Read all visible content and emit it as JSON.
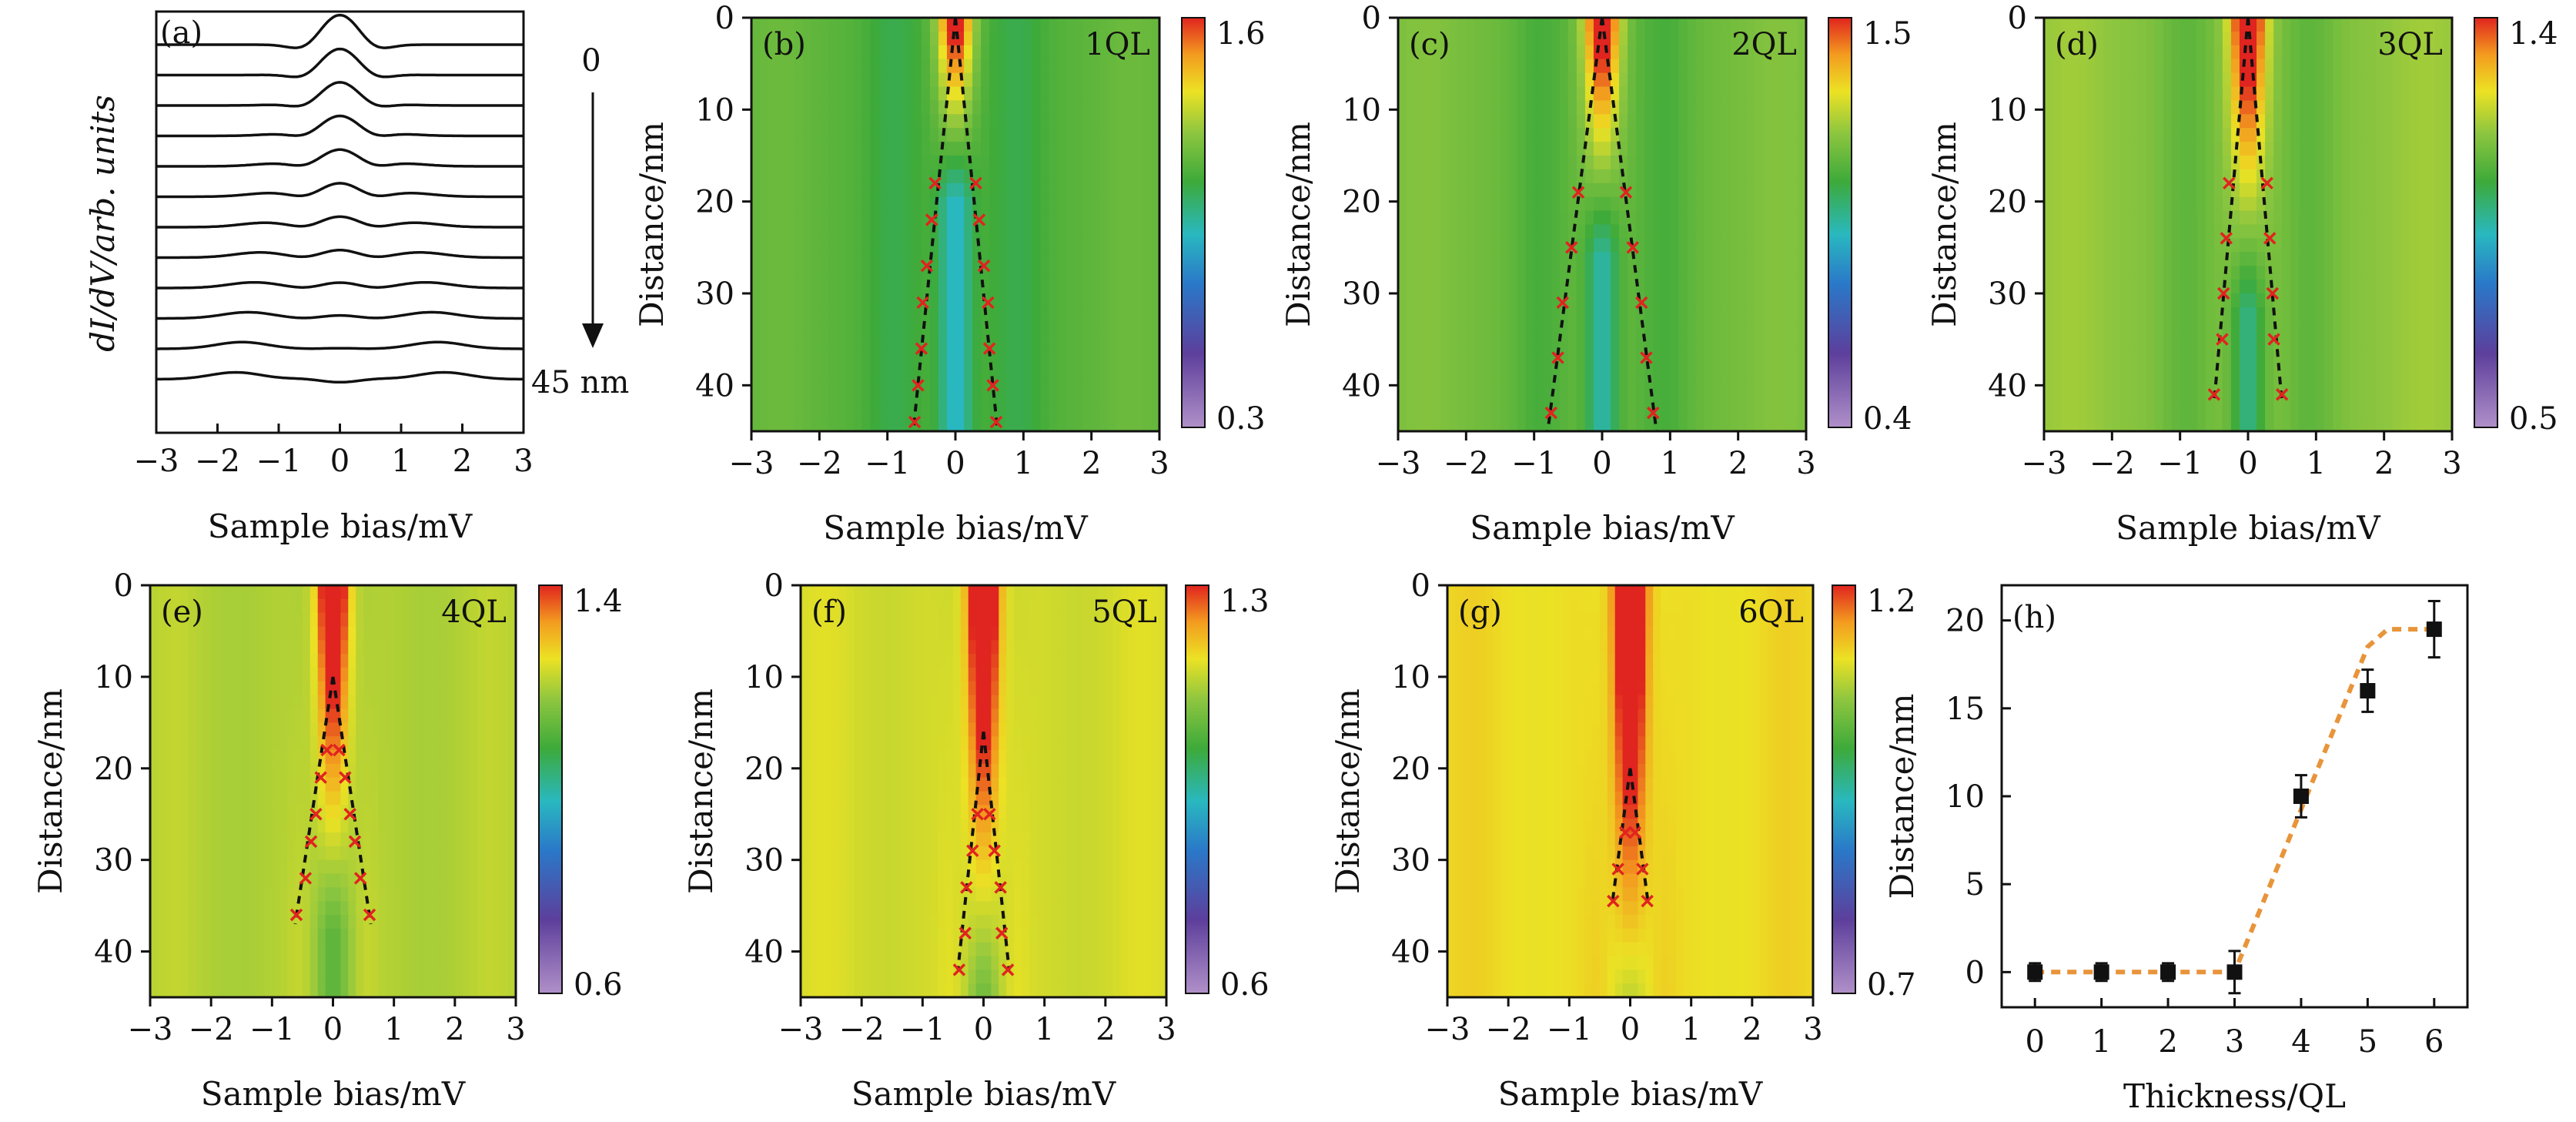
{
  "figure": {
    "panel_a": {
      "label": "(a)",
      "ylabel": "dI/dV/arb. units",
      "xlabel": "Sample bias/mV",
      "arrow_start_label": "0",
      "arrow_end_label": "45 nm"
    }
  },
  "chart_data": [
    {
      "id": "a",
      "type": "line",
      "title": "(a)",
      "xlabel": "Sample bias/mV",
      "ylabel": "dI/dV/arb. units",
      "xlim": [
        -3,
        3
      ],
      "xticks": [
        "−3",
        "−2",
        "−1",
        "0",
        "1",
        "2",
        "3"
      ],
      "series_count": 12,
      "annotations": [
        "0",
        "45 nm"
      ],
      "profile": {
        "peak_amplitude": [
          1.0,
          0.85,
          0.75,
          0.65,
          0.55,
          0.45,
          0.35,
          0.25,
          0.18,
          0.1,
          0.02,
          -0.1
        ],
        "coherence_peak_position_mV": [
          0.1,
          0.3,
          0.45,
          0.6,
          0.75,
          0.9,
          1.0,
          1.1,
          1.2,
          1.3,
          1.4,
          1.5
        ]
      }
    },
    {
      "id": "b",
      "type": "heatmap",
      "title": "(b)",
      "thickness_label": "1QL",
      "xlabel": "Sample bias/mV",
      "ylabel": "Distance/nm",
      "xlim": [
        -3,
        3
      ],
      "ylim": [
        0,
        45
      ],
      "xticks": [
        "−3",
        "−2",
        "−1",
        "0",
        "1",
        "2",
        "3"
      ],
      "yticks": [
        "0",
        "10",
        "20",
        "30",
        "40"
      ],
      "colorbar": {
        "max": 1.6,
        "min": 0.3,
        "max_label": "1.6",
        "min_label": "0.3"
      },
      "peak_positions": [
        {
          "y": 18,
          "x": 0.3
        },
        {
          "y": 22,
          "x": 0.35
        },
        {
          "y": 27,
          "x": 0.42
        },
        {
          "y": 31,
          "x": 0.48
        },
        {
          "y": 36,
          "x": 0.5
        },
        {
          "y": 40,
          "x": 0.55
        },
        {
          "y": 44,
          "x": 0.6
        }
      ],
      "dashed_line": [
        {
          "x": 0,
          "y": 0
        },
        {
          "x": 0.62,
          "y": 45
        }
      ]
    },
    {
      "id": "c",
      "type": "heatmap",
      "title": "(c)",
      "thickness_label": "2QL",
      "xlabel": "Sample bias/mV",
      "ylabel": "Distance/nm",
      "xlim": [
        -3,
        3
      ],
      "ylim": [
        0,
        45
      ],
      "xticks": [
        "−3",
        "−2",
        "−1",
        "0",
        "1",
        "2",
        "3"
      ],
      "yticks": [
        "0",
        "10",
        "20",
        "30",
        "40"
      ],
      "colorbar": {
        "max": 1.5,
        "min": 0.4,
        "max_label": "1.5",
        "min_label": "0.4"
      },
      "peak_positions": [
        {
          "y": 19,
          "x": 0.35
        },
        {
          "y": 25,
          "x": 0.45
        },
        {
          "y": 31,
          "x": 0.58
        },
        {
          "y": 37,
          "x": 0.65
        },
        {
          "y": 43,
          "x": 0.75
        }
      ],
      "dashed_line": [
        {
          "x": 0,
          "y": 0
        },
        {
          "x": 0.8,
          "y": 45
        }
      ]
    },
    {
      "id": "d",
      "type": "heatmap",
      "title": "(d)",
      "thickness_label": "3QL",
      "xlabel": "Sample bias/mV",
      "ylabel": "Distance/nm",
      "xlim": [
        -3,
        3
      ],
      "ylim": [
        0,
        45
      ],
      "xticks": [
        "−3",
        "−2",
        "−1",
        "0",
        "1",
        "2",
        "3"
      ],
      "yticks": [
        "0",
        "10",
        "20",
        "30",
        "40"
      ],
      "colorbar": {
        "max": 1.4,
        "min": 0.5,
        "max_label": "1.4",
        "min_label": "0.5"
      },
      "peak_positions": [
        {
          "y": 18,
          "x": 0.28
        },
        {
          "y": 24,
          "x": 0.32
        },
        {
          "y": 30,
          "x": 0.36
        },
        {
          "y": 35,
          "x": 0.38
        },
        {
          "y": 41,
          "x": 0.5
        }
      ],
      "dashed_line": [
        {
          "x": 0,
          "y": 0
        },
        {
          "x": 0.5,
          "y": 42
        }
      ]
    },
    {
      "id": "e",
      "type": "heatmap",
      "title": "(e)",
      "thickness_label": "4QL",
      "xlabel": "Sample bias/mV",
      "ylabel": "Distance/nm",
      "xlim": [
        -3,
        3
      ],
      "ylim": [
        0,
        45
      ],
      "xticks": [
        "−3",
        "−2",
        "−1",
        "0",
        "1",
        "2",
        "3"
      ],
      "yticks": [
        "0",
        "10",
        "20",
        "30",
        "40"
      ],
      "colorbar": {
        "max": 1.4,
        "min": 0.6,
        "max_label": "1.4",
        "min_label": "0.6"
      },
      "peak_positions": [
        {
          "y": 18,
          "x": 0.1
        },
        {
          "y": 21,
          "x": 0.2
        },
        {
          "y": 25,
          "x": 0.28
        },
        {
          "y": 28,
          "x": 0.36
        },
        {
          "y": 32,
          "x": 0.45
        },
        {
          "y": 36,
          "x": 0.6
        }
      ],
      "dashed_line": [
        {
          "x": 0,
          "y": 10
        },
        {
          "x": 0.62,
          "y": 37
        }
      ]
    },
    {
      "id": "f",
      "type": "heatmap",
      "title": "(f)",
      "thickness_label": "5QL",
      "xlabel": "Sample bias/mV",
      "ylabel": "Distance/nm",
      "xlim": [
        -3,
        3
      ],
      "ylim": [
        0,
        45
      ],
      "xticks": [
        "−3",
        "−2",
        "−1",
        "0",
        "1",
        "2",
        "3"
      ],
      "yticks": [
        "0",
        "10",
        "20",
        "30",
        "40"
      ],
      "colorbar": {
        "max": 1.3,
        "min": 0.6,
        "max_label": "1.3",
        "min_label": "0.6"
      },
      "peak_positions": [
        {
          "y": 25,
          "x": 0.1
        },
        {
          "y": 29,
          "x": 0.18
        },
        {
          "y": 33,
          "x": 0.28
        },
        {
          "y": 38,
          "x": 0.3
        },
        {
          "y": 42,
          "x": 0.4
        }
      ],
      "dashed_line": [
        {
          "x": 0,
          "y": 16
        },
        {
          "x": 0.42,
          "y": 42
        }
      ]
    },
    {
      "id": "g",
      "type": "heatmap",
      "title": "(g)",
      "thickness_label": "6QL",
      "xlabel": "Sample bias/mV",
      "ylabel": "Distance/nm",
      "xlim": [
        -3,
        3
      ],
      "ylim": [
        0,
        45
      ],
      "xticks": [
        "−3",
        "−2",
        "−1",
        "0",
        "1",
        "2",
        "3"
      ],
      "yticks": [
        "0",
        "10",
        "20",
        "30",
        "40"
      ],
      "colorbar": {
        "max": 1.2,
        "min": 0.7,
        "max_label": "1.2",
        "min_label": "0.7"
      },
      "peak_positions": [
        {
          "y": 27,
          "x": 0.08
        },
        {
          "y": 31,
          "x": 0.2
        },
        {
          "y": 34.5,
          "x": 0.28
        }
      ],
      "dashed_line": [
        {
          "x": 0,
          "y": 20
        },
        {
          "x": 0.3,
          "y": 35
        }
      ]
    },
    {
      "id": "h",
      "type": "scatter",
      "title": "(h)",
      "xlabel": "Thickness/QL",
      "ylabel": "Distance/nm",
      "xlim": [
        -0.5,
        6.5
      ],
      "ylim": [
        -2,
        22
      ],
      "xticks": [
        "0",
        "1",
        "2",
        "3",
        "4",
        "5",
        "6"
      ],
      "yticks": [
        "0",
        "5",
        "10",
        "15",
        "20"
      ],
      "x": [
        0,
        1,
        2,
        3,
        4,
        5,
        6
      ],
      "y": [
        0,
        0,
        0,
        0,
        10,
        16,
        19.5
      ],
      "yerr": [
        0.5,
        0.5,
        0.5,
        1.2,
        1.2,
        1.2,
        1.6
      ],
      "fit_line": [
        {
          "x": 0,
          "y": 0
        },
        {
          "x": 3,
          "y": 0
        },
        {
          "x": 5,
          "y": 18.5
        },
        {
          "x": 5.3,
          "y": 19.5
        },
        {
          "x": 6,
          "y": 19.5
        }
      ],
      "fit_color": "#e8943a"
    }
  ]
}
